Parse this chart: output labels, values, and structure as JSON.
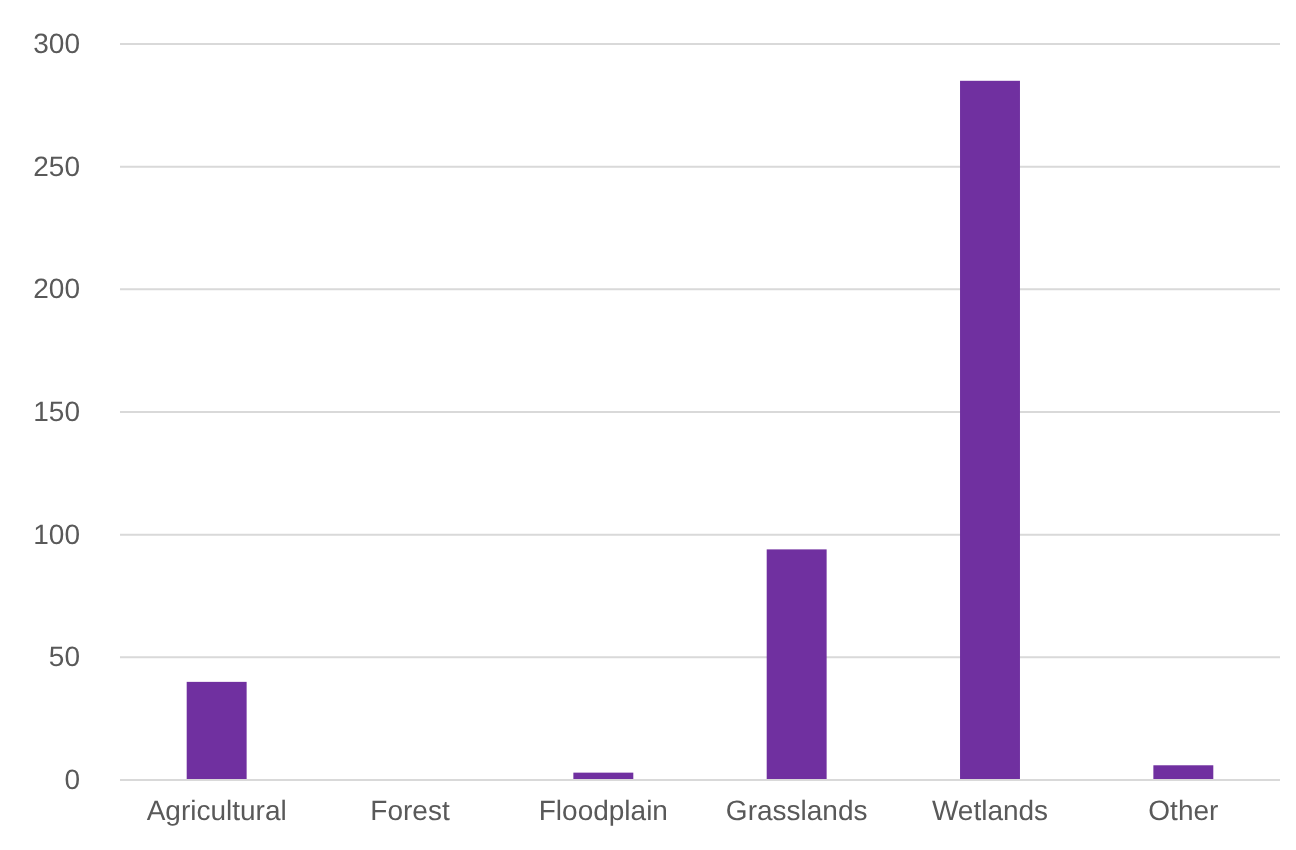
{
  "chart_data": {
    "type": "bar",
    "categories": [
      "Agricultural",
      "Forest",
      "Floodplain",
      "Grasslands",
      "Wetlands",
      "Other"
    ],
    "values": [
      40,
      0,
      3,
      94,
      285,
      6
    ],
    "color": "#7030a0",
    "ylim": [
      0,
      300
    ],
    "yticks": [
      0,
      50,
      100,
      150,
      200,
      250,
      300
    ],
    "grid": "y"
  }
}
